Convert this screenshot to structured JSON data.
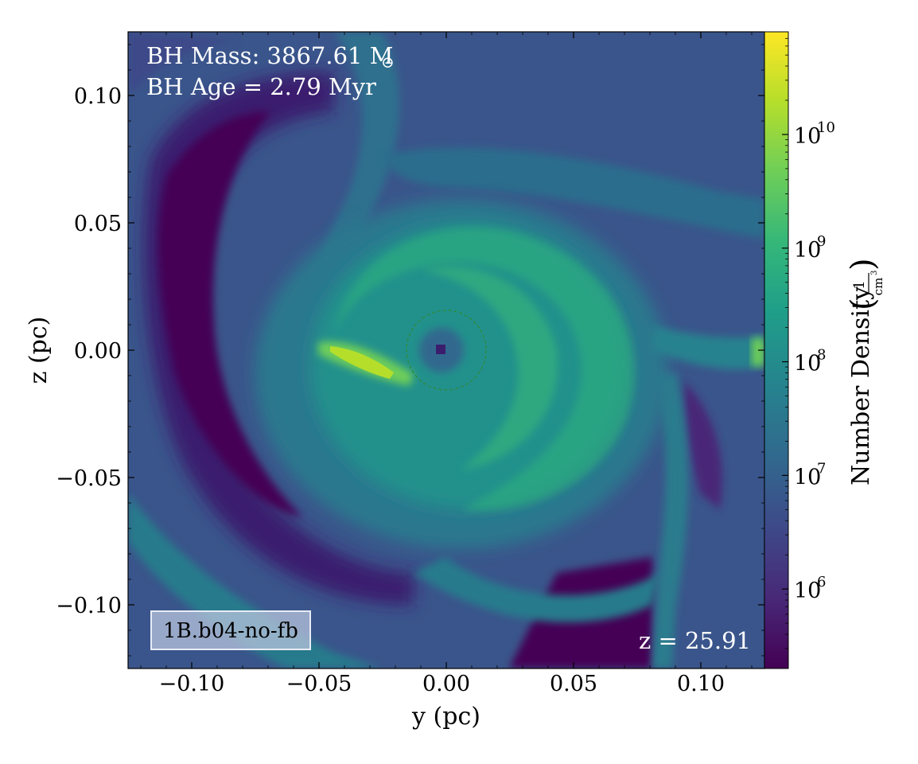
{
  "chart_data": {
    "type": "heatmap",
    "title": "",
    "xlabel": "y  (pc)",
    "ylabel": "z  (pc)",
    "xlim": [
      -0.125,
      0.125
    ],
    "ylim": [
      -0.125,
      0.125
    ],
    "x_ticks": [
      -0.1,
      -0.05,
      0.0,
      0.05,
      0.1
    ],
    "y_ticks": [
      -0.1,
      -0.05,
      0.0,
      0.05,
      0.1
    ],
    "x_tick_labels": [
      "−0.10",
      "−0.05",
      "0.00",
      "0.05",
      "0.10"
    ],
    "y_tick_labels": [
      "−0.10",
      "−0.05",
      "0.00",
      "0.05",
      "0.10"
    ],
    "colorbar": {
      "label": "Number Density",
      "unit_numerator": "1",
      "unit_denominator": "cm",
      "unit_exponent": "3",
      "scale": "log",
      "range": [
        200000,
        80000000000
      ],
      "ticks": [
        1000000,
        10000000,
        100000000,
        1000000000,
        10000000000
      ],
      "tick_bases": [
        "10",
        "10",
        "10",
        "10",
        "10"
      ],
      "tick_exponents": [
        "6",
        "7",
        "8",
        "9",
        "10"
      ],
      "colormap": [
        "#440154",
        "#482878",
        "#3e4989",
        "#31688e",
        "#26828e",
        "#1f9e89",
        "#35b779",
        "#6ece58",
        "#b5de2b",
        "#fde725"
      ]
    },
    "annotations": {
      "bh_mass_label": "BH Mass: 3867.61 M",
      "bh_mass_unit": "⊙",
      "bh_age_label": "BH Age = 2.79 Myr",
      "redshift_label": "z = 25.91",
      "run_label": "1B.b04-no-fb"
    },
    "accretion_circle": {
      "center": [
        0.0,
        0.0
      ],
      "radius_pc": 0.0155,
      "style": "dashed",
      "color": "#2e8b3a"
    },
    "sink_marker": {
      "position": [
        -0.002,
        -0.001
      ]
    }
  }
}
